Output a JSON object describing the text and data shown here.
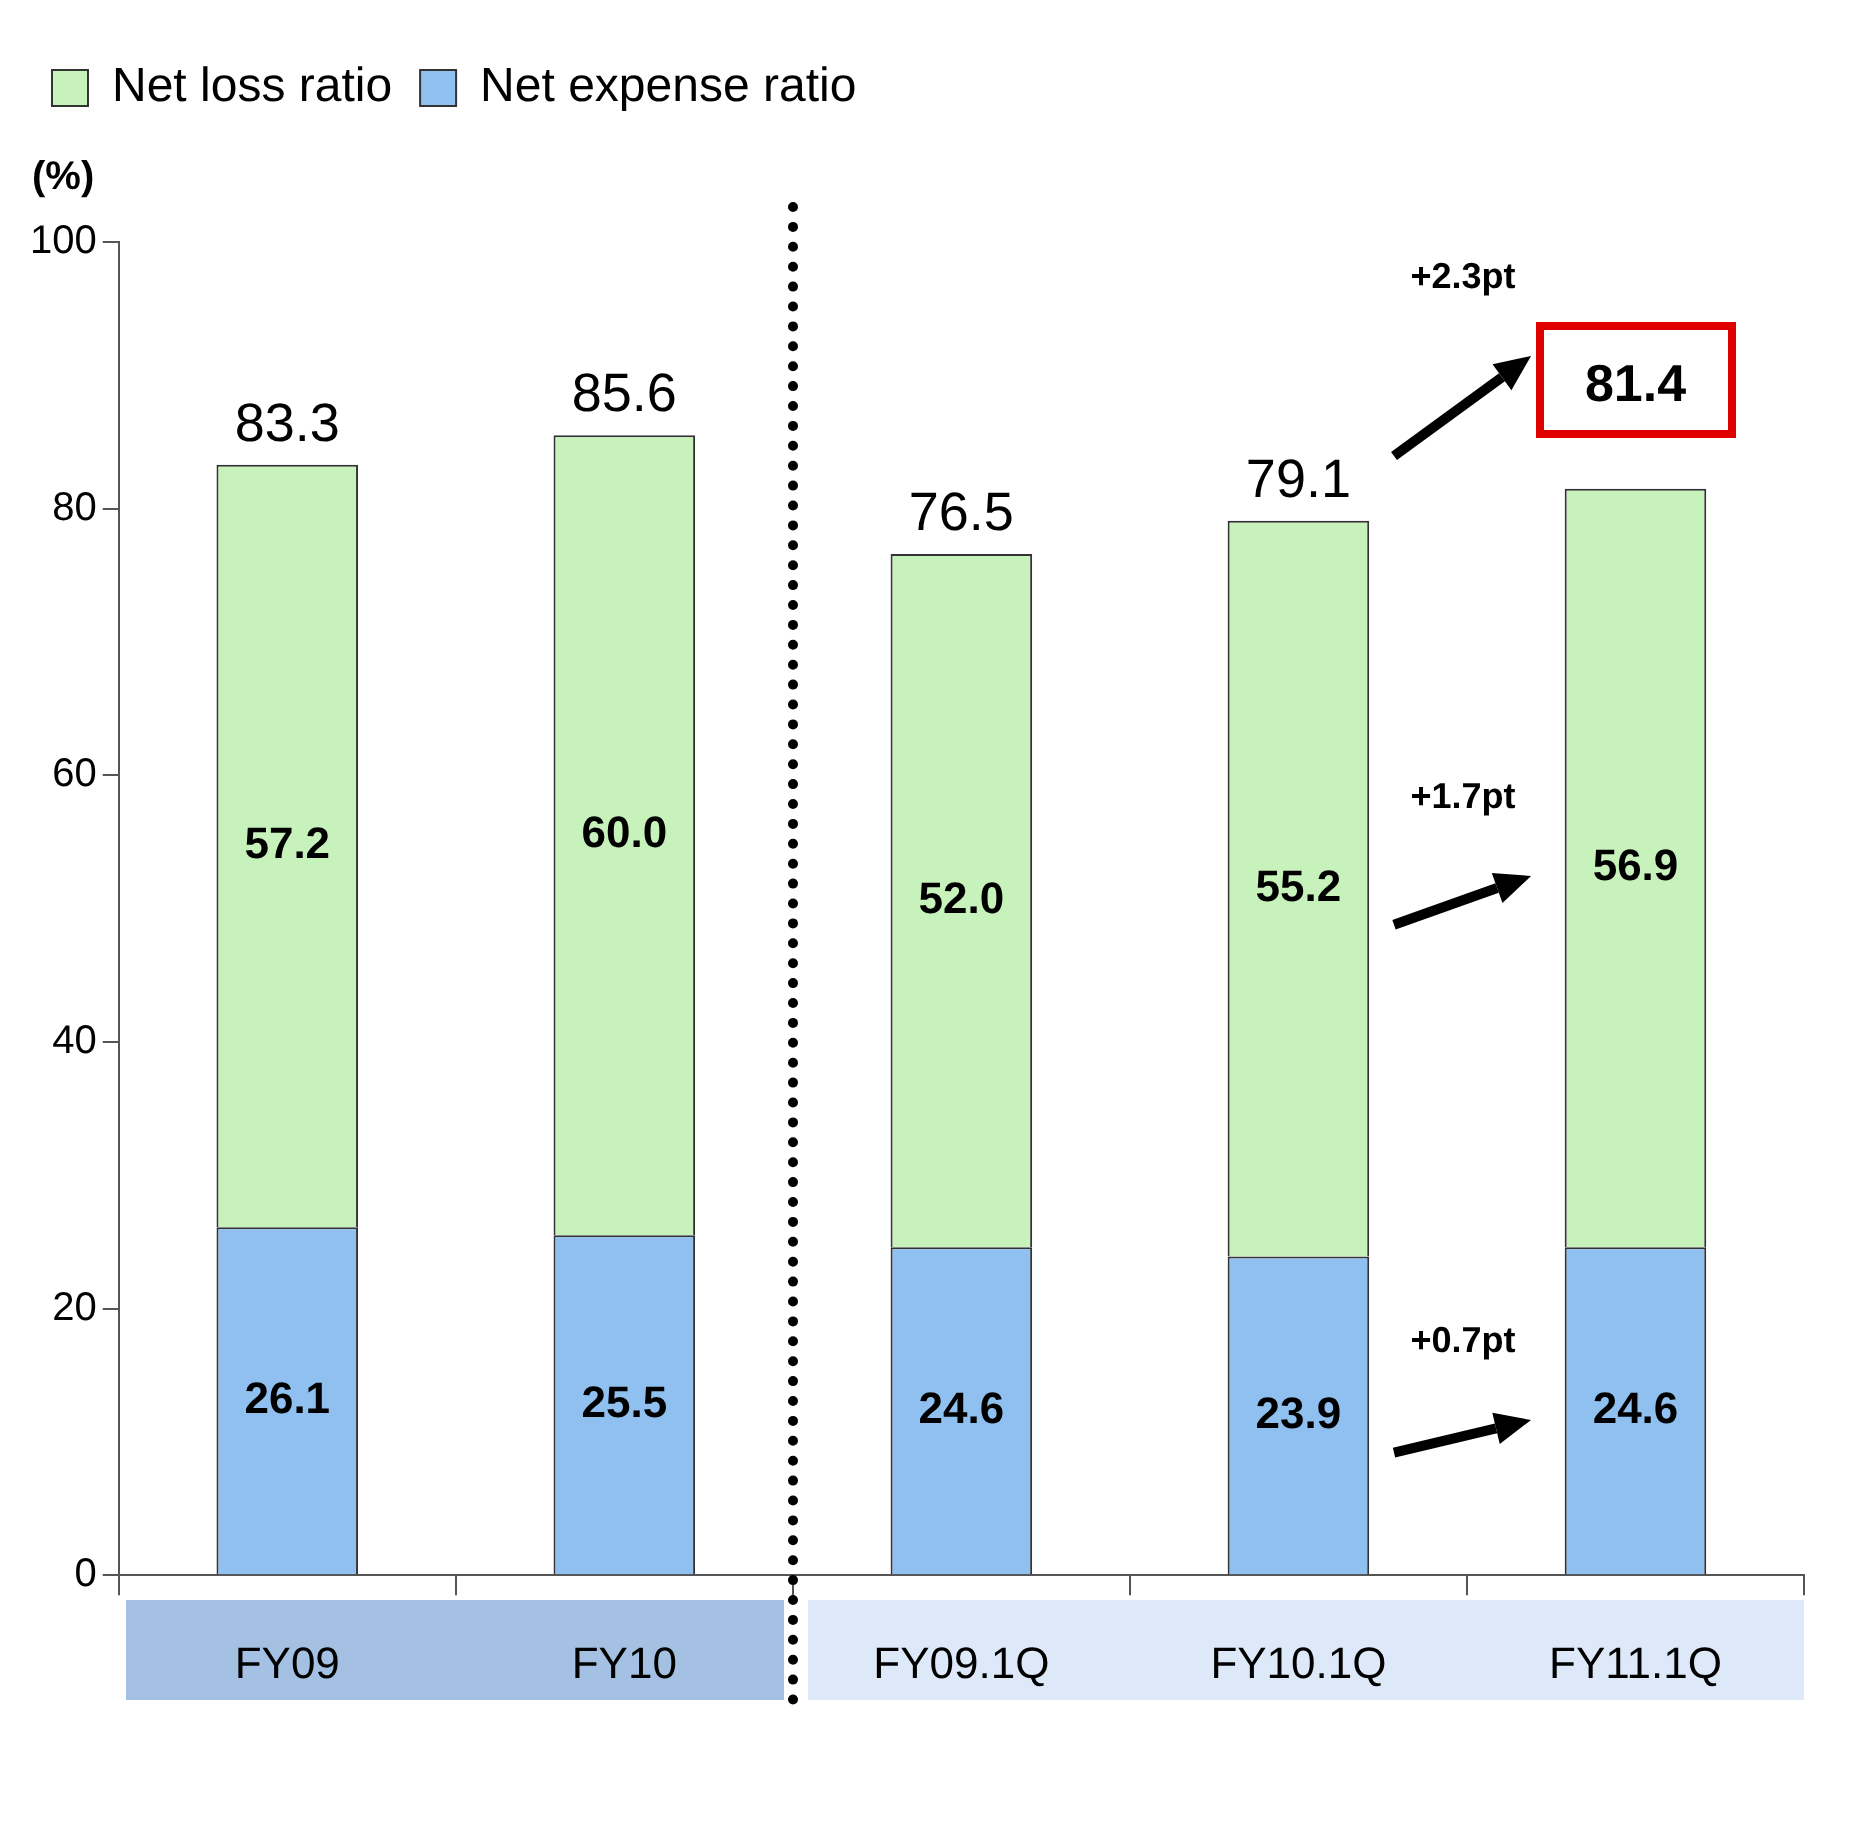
{
  "chart_data": {
    "type": "bar",
    "stacked": true,
    "ylabel": "(%)",
    "categories": [
      "FY09",
      "FY10",
      "FY09.1Q",
      "FY10.1Q",
      "FY11.1Q"
    ],
    "series": [
      {
        "name": "Net expense ratio",
        "color": "#8fc0f0",
        "values": [
          26.1,
          25.5,
          24.6,
          23.9,
          24.6
        ],
        "value_labels": [
          "26.1",
          "25.5",
          "24.6",
          "23.9",
          "24.6"
        ]
      },
      {
        "name": "Net loss ratio",
        "color": "#c8f2bc",
        "values": [
          57.2,
          60.0,
          52.0,
          55.2,
          56.9
        ],
        "value_labels": [
          "57.2",
          "60.0",
          "52.0",
          "55.2",
          "56.9"
        ]
      }
    ],
    "totals": [
      "83.3",
      "85.6",
      "76.5",
      "79.1",
      "81.4"
    ],
    "ylim": [
      0,
      100
    ],
    "yticks": [
      0,
      20,
      40,
      60,
      80,
      100
    ],
    "grid": false,
    "legend": "top left",
    "annotations": [
      "+0.7pt",
      "+1.7pt",
      "+2.3pt"
    ]
  }
}
